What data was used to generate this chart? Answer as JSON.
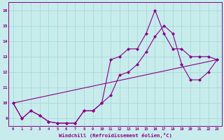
{
  "xlabel": "Windchill (Refroidissement éolien,°C)",
  "background_color": "#c8ecec",
  "grid_color": "#a8d8d8",
  "line_color": "#880088",
  "xlim": [
    -0.5,
    23.5
  ],
  "ylim": [
    8.5,
    16.5
  ],
  "yticks": [
    9,
    10,
    11,
    12,
    13,
    14,
    15,
    16
  ],
  "xticks": [
    0,
    1,
    2,
    3,
    4,
    5,
    6,
    7,
    8,
    9,
    10,
    11,
    12,
    13,
    14,
    15,
    16,
    17,
    18,
    19,
    20,
    21,
    22,
    23
  ],
  "series1_x": [
    0,
    1,
    2,
    3,
    4,
    5,
    6,
    7,
    8,
    9,
    10,
    11,
    12,
    13,
    14,
    15,
    16,
    17,
    18,
    19,
    20,
    21,
    22,
    23
  ],
  "series1_y": [
    10.0,
    9.0,
    9.5,
    9.2,
    8.8,
    8.7,
    8.7,
    8.7,
    9.5,
    9.5,
    10.0,
    12.8,
    13.0,
    13.5,
    13.5,
    14.5,
    16.0,
    14.5,
    13.5,
    13.5,
    13.0,
    13.0,
    13.0,
    12.8
  ],
  "series2_x": [
    0,
    1,
    2,
    3,
    4,
    5,
    6,
    7,
    8,
    9,
    10,
    11,
    12,
    13,
    14,
    15,
    16,
    17,
    18,
    19,
    20,
    21,
    22,
    23
  ],
  "series2_y": [
    10.0,
    9.0,
    9.5,
    9.2,
    8.8,
    8.7,
    8.7,
    8.7,
    9.5,
    9.5,
    10.0,
    10.5,
    11.8,
    12.0,
    12.5,
    13.3,
    14.3,
    15.0,
    14.5,
    12.5,
    11.5,
    11.5,
    12.0,
    12.8
  ],
  "series3_x": [
    0,
    23
  ],
  "series3_y": [
    10.0,
    12.8
  ]
}
